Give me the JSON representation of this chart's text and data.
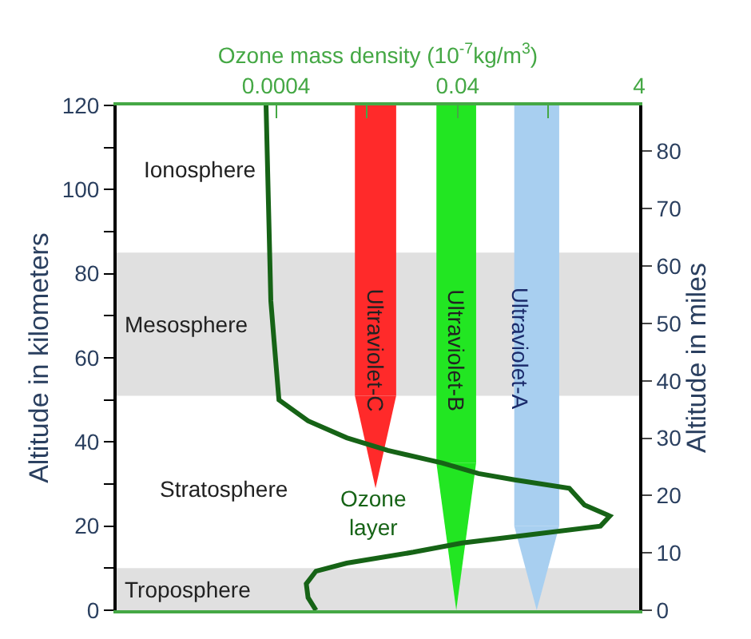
{
  "chart_data": {
    "type": "line",
    "xlabel": "Ozone mass density (10$^{-7}$kg/m$^{3}$)",
    "ylabel": "Altitude in kilometers",
    "y2label": "Altitude in miles",
    "log": "x",
    "grid": false,
    "legend": false,
    "marker": "none",
    "line_style": "solid",
    "xlim": [
      7e-06,
      4
    ],
    "xticks": [
      0.0004,
      {
        "value": 0.004,
        "label": null
      },
      0.04,
      {
        "value": 0.4,
        "label": null
      },
      4
    ],
    "ylim": [
      0,
      120
    ],
    "yticks": [
      0,
      {
        "value": 10,
        "label": null
      },
      20,
      {
        "value": 30,
        "label": null
      },
      40,
      {
        "value": 50,
        "label": null
      },
      60,
      {
        "value": 70,
        "label": null
      },
      80,
      {
        "value": 90,
        "label": null
      },
      100,
      {
        "value": 110,
        "label": null
      },
      120
    ],
    "y2lim": [
      0,
      88
    ],
    "y2ticks": [
      0,
      10,
      20,
      30,
      40,
      50,
      60,
      70,
      80
    ],
    "series": [
      {
        "color": "#166316",
        "x": [
          0.00031,
          0.00035,
          0.00038,
          0.00043,
          0.0009,
          0.0024,
          0.0068,
          0.027,
          0.068,
          0.17,
          0.68,
          1.0,
          1.9,
          1.5,
          0.26,
          0.045,
          0.013,
          0.0024,
          0.0011,
          0.00086,
          0.0009,
          0.0011
        ],
        "values": [
          120,
          73.5,
          64,
          50,
          45,
          41,
          38,
          35,
          32.5,
          31,
          29,
          25,
          22.4,
          20,
          18,
          16,
          13.8,
          11.2,
          9.3,
          6.3,
          3,
          0
        ]
      }
    ],
    "bands": [
      {
        "axis": "y",
        "from": 0,
        "to": 10,
        "label": "Troposphere",
        "color": "#e0e0e0"
      },
      {
        "axis": "y",
        "from": 51,
        "to": 85,
        "label": "Mesosphere",
        "color": "#e0e0e0"
      }
    ],
    "annotations": [
      "Ultraviolet-C",
      "Ultraviolet-B",
      "Ultraviolet-A",
      "Ionosphere",
      "Stratosphere",
      "Ozone\nlayer"
    ]
  }
}
